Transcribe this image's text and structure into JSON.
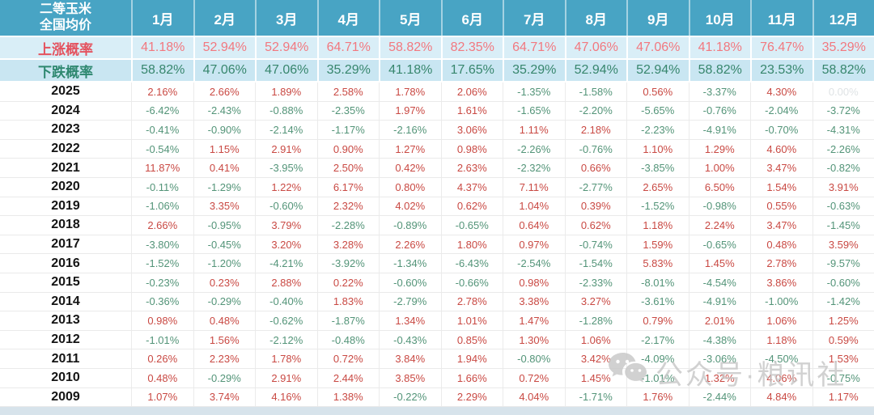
{
  "chart_data": {
    "type": "table",
    "title": "二等玉米全国均价",
    "title_lines": [
      "二等玉米",
      "全国均价"
    ],
    "columns": [
      "1月",
      "2月",
      "3月",
      "4月",
      "5月",
      "6月",
      "7月",
      "8月",
      "9月",
      "10月",
      "11月",
      "12月"
    ],
    "rise_probability": {
      "label": "上涨概率",
      "values": [
        "41.18%",
        "52.94%",
        "52.94%",
        "64.71%",
        "58.82%",
        "82.35%",
        "64.71%",
        "47.06%",
        "47.06%",
        "41.18%",
        "76.47%",
        "35.29%"
      ]
    },
    "fall_probability": {
      "label": "下跌概率",
      "values": [
        "58.82%",
        "47.06%",
        "47.06%",
        "35.29%",
        "41.18%",
        "17.65%",
        "35.29%",
        "52.94%",
        "52.94%",
        "58.82%",
        "23.53%",
        "58.82%"
      ]
    },
    "rows": [
      {
        "year": "2025",
        "values": [
          "2.16%",
          "2.66%",
          "1.89%",
          "2.58%",
          "1.78%",
          "2.06%",
          "-1.35%",
          "-1.58%",
          "0.56%",
          "-3.37%",
          "4.30%",
          "0.00%"
        ]
      },
      {
        "year": "2024",
        "values": [
          "-6.42%",
          "-2.43%",
          "-0.88%",
          "-2.35%",
          "1.97%",
          "1.61%",
          "-1.65%",
          "-2.20%",
          "-5.65%",
          "-0.76%",
          "-2.04%",
          "-3.72%"
        ]
      },
      {
        "year": "2023",
        "values": [
          "-0.41%",
          "-0.90%",
          "-2.14%",
          "-1.17%",
          "-2.16%",
          "3.06%",
          "1.11%",
          "2.18%",
          "-2.23%",
          "-4.91%",
          "-0.70%",
          "-4.31%"
        ]
      },
      {
        "year": "2022",
        "values": [
          "-0.54%",
          "1.15%",
          "2.91%",
          "0.90%",
          "1.27%",
          "0.98%",
          "-2.26%",
          "-0.76%",
          "1.10%",
          "1.29%",
          "4.60%",
          "-2.26%"
        ]
      },
      {
        "year": "2021",
        "values": [
          "11.87%",
          "0.41%",
          "-3.95%",
          "2.50%",
          "0.42%",
          "2.63%",
          "-2.32%",
          "0.66%",
          "-3.85%",
          "1.00%",
          "3.47%",
          "-0.82%"
        ]
      },
      {
        "year": "2020",
        "values": [
          "-0.11%",
          "-1.29%",
          "1.22%",
          "6.17%",
          "0.80%",
          "4.37%",
          "7.11%",
          "-2.77%",
          "2.65%",
          "6.50%",
          "1.54%",
          "3.91%"
        ]
      },
      {
        "year": "2019",
        "values": [
          "-1.06%",
          "3.35%",
          "-0.60%",
          "2.32%",
          "4.02%",
          "0.62%",
          "1.04%",
          "0.39%",
          "-1.52%",
          "-0.98%",
          "0.55%",
          "-0.63%"
        ]
      },
      {
        "year": "2018",
        "values": [
          "2.66%",
          "-0.95%",
          "3.79%",
          "-2.28%",
          "-0.89%",
          "-0.65%",
          "0.64%",
          "0.62%",
          "1.18%",
          "2.24%",
          "3.47%",
          "-1.45%"
        ]
      },
      {
        "year": "2017",
        "values": [
          "-3.80%",
          "-0.45%",
          "3.20%",
          "3.28%",
          "2.26%",
          "1.80%",
          "0.97%",
          "-0.74%",
          "1.59%",
          "-0.65%",
          "0.48%",
          "3.59%"
        ]
      },
      {
        "year": "2016",
        "values": [
          "-1.52%",
          "-1.20%",
          "-4.21%",
          "-3.92%",
          "-1.34%",
          "-6.43%",
          "-2.54%",
          "-1.54%",
          "5.83%",
          "1.45%",
          "2.78%",
          "-9.57%"
        ]
      },
      {
        "year": "2015",
        "values": [
          "-0.23%",
          "0.23%",
          "2.88%",
          "0.22%",
          "-0.60%",
          "-0.66%",
          "0.98%",
          "-2.33%",
          "-8.01%",
          "-4.54%",
          "3.86%",
          "-0.60%"
        ]
      },
      {
        "year": "2014",
        "values": [
          "-0.36%",
          "-0.29%",
          "-0.40%",
          "1.83%",
          "-2.79%",
          "2.78%",
          "3.38%",
          "3.27%",
          "-3.61%",
          "-4.91%",
          "-1.00%",
          "-1.42%"
        ]
      },
      {
        "year": "2013",
        "values": [
          "0.98%",
          "0.48%",
          "-0.62%",
          "-1.87%",
          "1.34%",
          "1.01%",
          "1.47%",
          "-1.28%",
          "0.79%",
          "2.01%",
          "1.06%",
          "1.25%"
        ]
      },
      {
        "year": "2012",
        "values": [
          "-1.01%",
          "1.56%",
          "-2.12%",
          "-0.48%",
          "-0.43%",
          "0.85%",
          "1.30%",
          "1.06%",
          "-2.17%",
          "-4.38%",
          "1.18%",
          "0.59%"
        ]
      },
      {
        "year": "2011",
        "values": [
          "0.26%",
          "2.23%",
          "1.78%",
          "0.72%",
          "3.84%",
          "1.94%",
          "-0.80%",
          "3.42%",
          "-4.09%",
          "-3.06%",
          "-4.50%",
          "1.53%"
        ]
      },
      {
        "year": "2010",
        "values": [
          "0.48%",
          "-0.29%",
          "2.91%",
          "2.44%",
          "3.85%",
          "1.66%",
          "0.72%",
          "1.45%",
          "-1.01%",
          "1.32%",
          "4.06%",
          "-0.75%"
        ]
      },
      {
        "year": "2009",
        "values": [
          "1.07%",
          "3.74%",
          "4.16%",
          "1.38%",
          "-0.22%",
          "2.29%",
          "4.04%",
          "-1.71%",
          "1.76%",
          "-2.44%",
          "4.84%",
          "1.17%"
        ]
      }
    ]
  },
  "watermark": {
    "icon": "wechat-icon",
    "text": "公众号·粮讯社"
  },
  "colors": {
    "header-bg": "#48A4C4",
    "rise-bg": "#D9EEF7",
    "fall-bg": "#C9E6F2",
    "rise-label": "#E4525E",
    "rise-value": "#F2787F",
    "fall-label": "#2E8870",
    "fall-value": "#37866D",
    "positive": "#C94943",
    "negative": "#539478",
    "zero": "#DFE3E5",
    "watermark": "#C6C6C6"
  }
}
